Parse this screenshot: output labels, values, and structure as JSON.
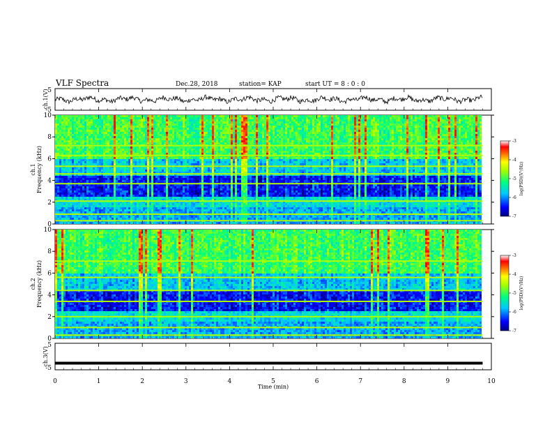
{
  "header": {
    "title": "VLF Spectra",
    "date": "Dec.28, 2018",
    "station": "station= KAP",
    "start": "start  UT =   8 : 0  : 0"
  },
  "chart_data": [
    {
      "type": "line",
      "panel": "ch1-waveform",
      "ylabel": "ch.1(V)",
      "ylim": [
        -5,
        5
      ],
      "yticks": [
        "5",
        "-5"
      ],
      "xlim": [
        0,
        10
      ],
      "x_end": 9.8,
      "values_min": -2.3,
      "values_max": 2.2
    },
    {
      "type": "heatmap",
      "panel": "ch1-spectrogram",
      "ylabel": "ch.1",
      "ylabel2": "Frequency (kHz)",
      "ylim": [
        0,
        10
      ],
      "yticks": [
        "0",
        "2",
        "4",
        "6",
        "8",
        "10"
      ],
      "xlim": [
        0,
        10
      ],
      "x_end": 9.8,
      "colorbar": {
        "label": "log(PSD)(V²/Hz)",
        "min": -7,
        "max": -3,
        "ticks": [
          "-3",
          "-4",
          "-5",
          "-6",
          "-7"
        ]
      },
      "notable_lines_khz": [
        0.3,
        0.9,
        2.1,
        3.7,
        4.6,
        5.3,
        6.3,
        7.2
      ]
    },
    {
      "type": "heatmap",
      "panel": "ch2-spectrogram",
      "ylabel": "ch.2",
      "ylabel2": "Frequency (kHz)",
      "ylim": [
        0,
        10
      ],
      "yticks": [
        "0",
        "2",
        "4",
        "6",
        "8",
        "10"
      ],
      "xlim": [
        0,
        10
      ],
      "x_end": 9.8,
      "colorbar": {
        "label": "log(PSD)(V²/Hz)",
        "min": -7,
        "max": -3,
        "ticks": [
          "-3",
          "-4",
          "-5",
          "-6",
          "-7"
        ]
      },
      "notable_lines_khz": [
        0.3,
        1.0,
        2.0,
        3.4,
        4.4,
        5.6,
        7.1
      ]
    },
    {
      "type": "line",
      "panel": "ch3-waveform",
      "ylabel": "ch.3(V)",
      "ylim": [
        -5,
        5
      ],
      "yticks": [
        "5",
        "-5"
      ],
      "xlim": [
        0,
        10
      ],
      "x_end": 9.8,
      "values": [
        -2.5,
        -2.5
      ],
      "x": [
        0,
        9.8
      ]
    }
  ],
  "xaxis": {
    "label": "Time  (min)",
    "ticks": [
      "0",
      "1",
      "2",
      "3",
      "4",
      "5",
      "6",
      "7",
      "8",
      "9",
      "10"
    ]
  }
}
